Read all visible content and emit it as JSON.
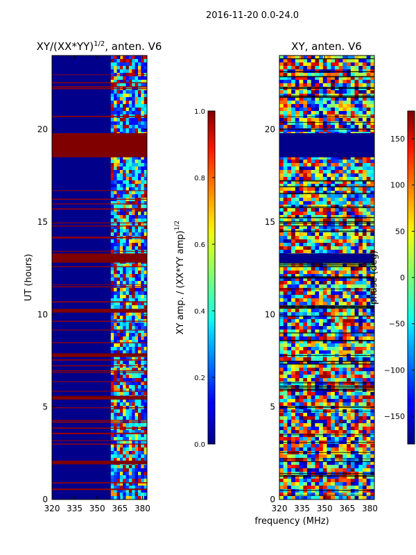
{
  "suptitle": "2016-11-20 0.0-24.0",
  "chart_data": [
    {
      "type": "heatmap",
      "title_base": "XY/(XX*YY)",
      "title_exp": "1/2",
      "title_suffix": ", anten. V6",
      "xlabel": "",
      "ylabel": "UT (hours)",
      "xlim": [
        320,
        383
      ],
      "ylim": [
        0,
        24
      ],
      "xticks": [
        320,
        335,
        350,
        365,
        380
      ],
      "yticks": [
        0,
        5,
        10,
        15,
        20
      ],
      "colorbar": {
        "label_base": "XY amp. / (XX*YY amp)",
        "label_exp": "1/2",
        "range": [
          0.0,
          1.0
        ],
        "ticks": [
          "0.0",
          "0.2",
          "0.4",
          "0.6",
          "0.8",
          "1.0"
        ],
        "tick_values": [
          0.0,
          0.2,
          0.4,
          0.6,
          0.8,
          1.0
        ]
      },
      "saturated_bands_hours": [
        [
          18.5,
          19.8
        ],
        [
          12.8,
          13.3
        ],
        [
          10.1,
          10.3
        ],
        [
          7.7,
          7.9
        ],
        [
          5.4,
          5.6
        ],
        [
          1.9,
          2.1
        ]
      ],
      "bright_freq_range_MHz": [
        359,
        383
      ]
    },
    {
      "type": "heatmap",
      "title": "XY, anten. V6",
      "xlabel": "frequency (MHz)",
      "ylabel": "",
      "xlim": [
        320,
        383
      ],
      "ylim": [
        0,
        24
      ],
      "xticks": [
        320,
        335,
        350,
        365,
        380
      ],
      "yticks": [
        0,
        5,
        10,
        15,
        20
      ],
      "colorbar": {
        "label": "phase (deg)",
        "range": [
          -180,
          180
        ],
        "ticks": [
          "−150",
          "−100",
          "−50",
          "0",
          "50",
          "100",
          "150"
        ],
        "tick_values": [
          -150,
          -100,
          -50,
          0,
          50,
          100,
          150
        ]
      },
      "flat_bands_hours": [
        [
          18.5,
          19.8
        ],
        [
          12.8,
          13.3
        ]
      ]
    }
  ]
}
